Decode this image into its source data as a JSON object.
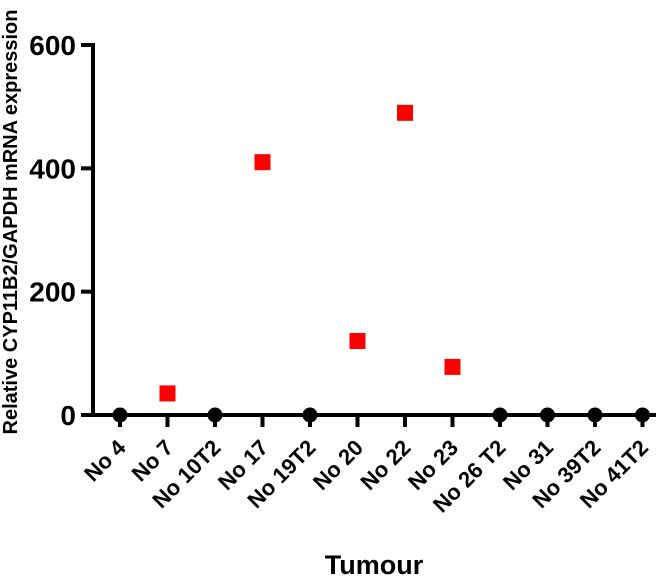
{
  "chart_data": {
    "type": "scatter",
    "title": "",
    "xlabel": "Tumour",
    "ylabel": "Relative CYP11B2/GAPDH mRNA expression",
    "ylim": [
      0,
      600
    ],
    "yticks": [
      0,
      200,
      400,
      600
    ],
    "ytick_labels": [
      "0",
      "200",
      "400",
      "600"
    ],
    "grid": false,
    "legend": false,
    "axis_color": "#000000",
    "marker_colors": {
      "positive": "#ff0000",
      "zero": "#000000"
    },
    "categories": [
      "No 4",
      "No 7",
      "No 10T2",
      "No 17",
      "No 19T2",
      "No 20",
      "No 22",
      "No 23",
      "No 26 T2",
      "No 31",
      "No 39T2",
      "No 41T2"
    ],
    "points": [
      {
        "category": "No 4",
        "value": 0,
        "marker": "circle",
        "color": "#000000"
      },
      {
        "category": "No 7",
        "value": 35,
        "marker": "square",
        "color": "#ff0000"
      },
      {
        "category": "No 10T2",
        "value": 0,
        "marker": "circle",
        "color": "#000000"
      },
      {
        "category": "No 17",
        "value": 410,
        "marker": "square",
        "color": "#ff0000"
      },
      {
        "category": "No 19T2",
        "value": 0,
        "marker": "circle",
        "color": "#000000"
      },
      {
        "category": "No 20",
        "value": 120,
        "marker": "square",
        "color": "#ff0000"
      },
      {
        "category": "No 22",
        "value": 490,
        "marker": "square",
        "color": "#ff0000"
      },
      {
        "category": "No 23",
        "value": 78,
        "marker": "square",
        "color": "#ff0000"
      },
      {
        "category": "No 26 T2",
        "value": 0,
        "marker": "circle",
        "color": "#000000"
      },
      {
        "category": "No 31",
        "value": 0,
        "marker": "circle",
        "color": "#000000"
      },
      {
        "category": "No 39T2",
        "value": 0,
        "marker": "circle",
        "color": "#000000"
      },
      {
        "category": "No 41T2",
        "value": 0,
        "marker": "circle",
        "color": "#000000"
      }
    ]
  }
}
